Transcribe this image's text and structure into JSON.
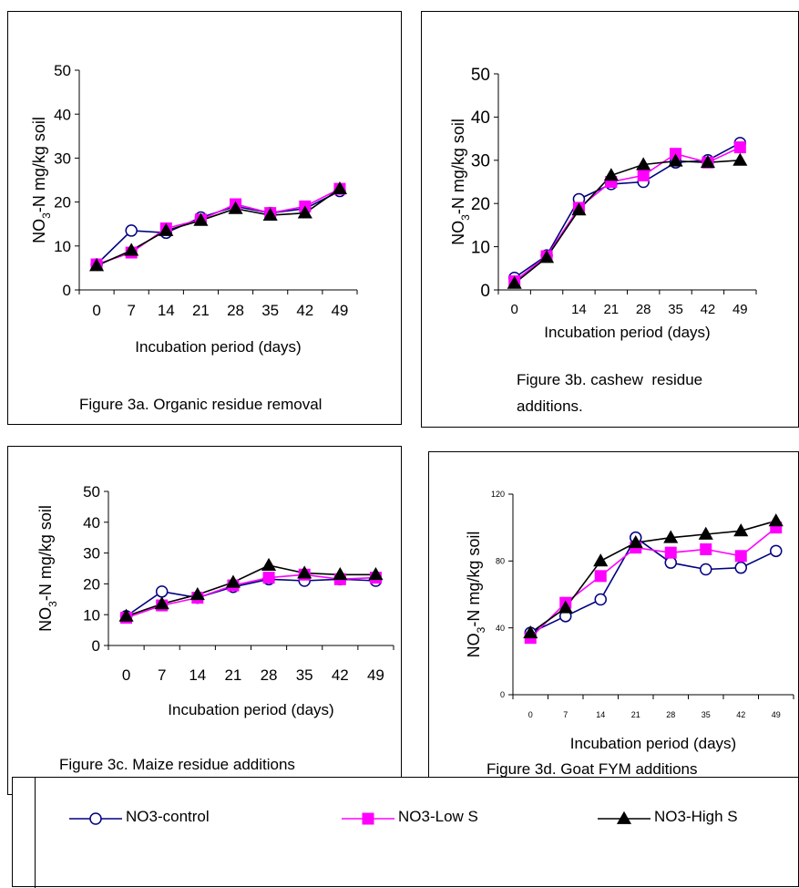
{
  "legend": {
    "items": [
      {
        "key": "control",
        "label": "NO3-control"
      },
      {
        "key": "low",
        "label": "NO3-Low  S"
      },
      {
        "key": "high",
        "label": "NO3-High S"
      }
    ]
  },
  "series_style": {
    "control": {
      "color": "#000080",
      "marker": "circle",
      "fill": "#ffffff"
    },
    "low": {
      "color": "#ff00ff",
      "marker": "square",
      "fill": "#ff00ff"
    },
    "high": {
      "color": "#000000",
      "marker": "triangle",
      "fill": "#000000"
    }
  },
  "chart_data": [
    {
      "id": "a",
      "type": "line",
      "caption": "Figure 3a. Organic residue removal",
      "xlabel": "Incubation period (days)",
      "ylabel": {
        "prefix": "NO",
        "sub": "3",
        "suffix": "-N mg/kg soil"
      },
      "ylim": [
        0,
        50
      ],
      "yticks": [
        0,
        10,
        20,
        30,
        40,
        50
      ],
      "categories": [
        "0",
        "7",
        "14",
        "21",
        "28",
        "35",
        "42",
        "49"
      ],
      "series": [
        {
          "key": "control",
          "name": "NO3-control",
          "values": [
            5.8,
            13.5,
            13.0,
            16.5,
            19.0,
            17.5,
            18.5,
            22.5
          ]
        },
        {
          "key": "low",
          "name": "NO3-Low  S",
          "values": [
            5.8,
            8.5,
            14.0,
            16.0,
            19.5,
            17.5,
            19.0,
            23.0
          ]
        },
        {
          "key": "high",
          "name": "NO3-High S",
          "values": [
            5.5,
            9.0,
            13.5,
            15.8,
            18.5,
            17.0,
            17.5,
            23.0
          ]
        }
      ]
    },
    {
      "id": "b",
      "type": "line",
      "caption": "Figure 3b. cashew  residue\nadditions.",
      "xlabel": "Incubation period (days)",
      "ylabel": {
        "prefix": "NO",
        "sub": "3",
        "suffix": "-N mg/kg soil"
      },
      "ylim": [
        0,
        50
      ],
      "yticks": [
        0,
        10,
        20,
        30,
        40,
        50
      ],
      "categories": [
        "0",
        "",
        "14",
        "21",
        "28",
        "35",
        "42",
        "49"
      ],
      "series": [
        {
          "key": "control",
          "name": "NO3-control",
          "values": [
            2.8,
            8.0,
            21.0,
            24.5,
            25.0,
            29.5,
            30.0,
            34.0
          ]
        },
        {
          "key": "low",
          "name": "NO3-Low  S",
          "values": [
            2.0,
            7.8,
            19.0,
            25.0,
            26.5,
            31.5,
            29.5,
            33.0
          ]
        },
        {
          "key": "high",
          "name": "NO3-High S",
          "values": [
            1.5,
            7.5,
            18.5,
            26.5,
            29.0,
            29.8,
            29.5,
            30.0
          ]
        }
      ]
    },
    {
      "id": "c",
      "type": "line",
      "caption": "Figure 3c. Maize residue additions",
      "xlabel": "Incubation period (days)",
      "ylabel": {
        "prefix": "NO",
        "sub": "3",
        "suffix": "-N mg/kg soil"
      },
      "ylim": [
        0,
        50
      ],
      "yticks": [
        0,
        10,
        20,
        30,
        40,
        50
      ],
      "categories": [
        "0",
        "7",
        "14",
        "21",
        "28",
        "35",
        "42",
        "49"
      ],
      "series": [
        {
          "key": "control",
          "name": "NO3-control",
          "values": [
            9.5,
            17.5,
            15.5,
            19.0,
            21.5,
            21.0,
            21.5,
            21.0
          ]
        },
        {
          "key": "low",
          "name": "NO3-Low  S",
          "values": [
            9.0,
            13.0,
            15.5,
            19.5,
            22.0,
            23.0,
            21.5,
            22.0
          ]
        },
        {
          "key": "high",
          "name": "NO3-High S",
          "values": [
            9.5,
            13.5,
            16.5,
            20.5,
            26.0,
            23.5,
            23.0,
            23.0
          ]
        }
      ]
    },
    {
      "id": "d",
      "type": "line",
      "caption": "Figure 3d. Goat FYM additions",
      "xlabel": "Incubation period (days)",
      "ylabel": {
        "prefix": "NO",
        "sub": "3",
        "suffix": "-N mg/kg soil"
      },
      "ylim": [
        0,
        120
      ],
      "yticks": [
        0,
        40,
        80,
        120
      ],
      "categories": [
        "0",
        "7",
        "14",
        "21",
        "28",
        "35",
        "42",
        "49"
      ],
      "series": [
        {
          "key": "control",
          "name": "NO3-control",
          "values": [
            37,
            47,
            57,
            94,
            79,
            75,
            76,
            86
          ]
        },
        {
          "key": "low",
          "name": "NO3-Low  S",
          "values": [
            34,
            55,
            71,
            88,
            85,
            87,
            83,
            100
          ]
        },
        {
          "key": "high",
          "name": "NO3-High S",
          "values": [
            37,
            52,
            80,
            91,
            94,
            96,
            98,
            104
          ]
        }
      ]
    }
  ]
}
